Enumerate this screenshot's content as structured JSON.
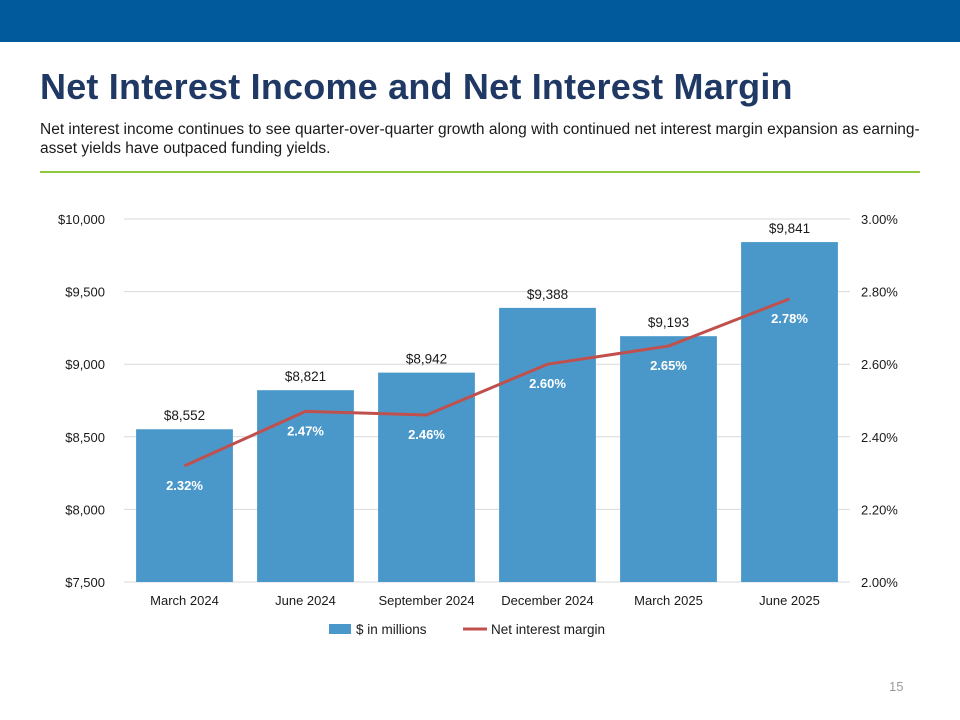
{
  "slide": {
    "title": "Net Interest Income and Net Interest Margin",
    "subtitle": "Net interest income continues to see quarter-over-quarter growth along with continued net interest margin expansion as earning-asset yields have outpaced funding yields.",
    "page_number": "15",
    "colors": {
      "header_bar": "#005a9c",
      "title": "#1f3864",
      "rule": "#8dc63f"
    }
  },
  "chart_data": {
    "type": "bar",
    "categories": [
      "March 2024",
      "June 2024",
      "September 2024",
      "December 2024",
      "March 2025",
      "June 2025"
    ],
    "series": [
      {
        "name": "$ in millions",
        "type": "bar",
        "axis": "left",
        "values": [
          8552,
          8821,
          8942,
          9388,
          9193,
          9841
        ],
        "labels": [
          "$8,552",
          "$8,821",
          "$8,942",
          "$9,388",
          "$9,193",
          "$9,841"
        ],
        "color": "#4a98c9"
      },
      {
        "name": "Net interest margin",
        "type": "line",
        "axis": "right",
        "values": [
          2.32,
          2.47,
          2.46,
          2.6,
          2.65,
          2.78
        ],
        "labels": [
          "2.32%",
          "2.47%",
          "2.46%",
          "2.60%",
          "2.65%",
          "2.78%"
        ],
        "color": "#c0504d"
      }
    ],
    "y_left": {
      "min": 7500,
      "max": 10000,
      "ticks": [
        7500,
        8000,
        8500,
        9000,
        9500,
        10000
      ],
      "tick_labels": [
        "$7,500",
        "$8,000",
        "$8,500",
        "$9,000",
        "$9,500",
        "$10,000"
      ]
    },
    "y_right": {
      "min": 2.0,
      "max": 3.0,
      "ticks": [
        2.0,
        2.2,
        2.4,
        2.6,
        2.8,
        3.0
      ],
      "tick_labels": [
        "2.00%",
        "2.20%",
        "2.40%",
        "2.60%",
        "2.80%",
        "3.00%"
      ]
    },
    "grid": true,
    "legend": "bottom",
    "gridline_color": "#d9d9d9"
  }
}
